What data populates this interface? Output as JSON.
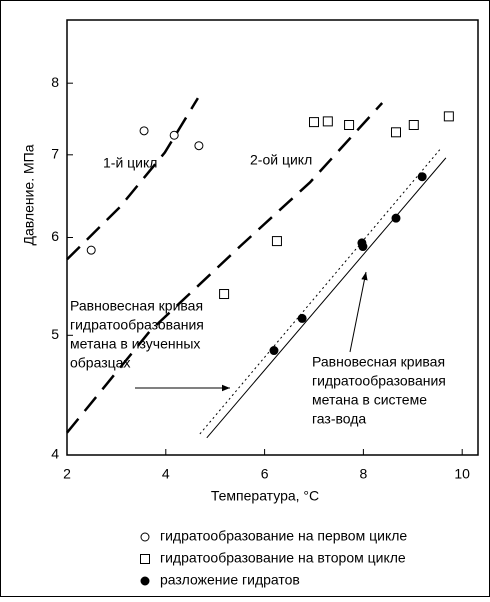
{
  "chart_data": {
    "type": "scatter",
    "xlabel": "Температура, °C",
    "ylabel": "Давление. МПа",
    "xlim": [
      2,
      10.32
    ],
    "xticks": [
      2,
      4,
      6,
      8,
      10
    ],
    "ylim": [
      4,
      9
    ],
    "yticks": [
      4,
      5,
      6,
      7,
      8
    ],
    "ylog": true,
    "series": [
      {
        "name": "гидратообразование на первом цикле",
        "marker": "open-circle",
        "color": "#000000",
        "x": [
          2.49,
          3.56,
          4.17,
          4.67
        ],
        "values": [
          5.86,
          7.32,
          7.26,
          7.12
        ]
      },
      {
        "name": "гидратообразование на втором цикле",
        "marker": "open-square",
        "color": "#000000",
        "x": [
          5.18,
          6.25,
          7.0,
          7.28,
          7.71,
          8.66,
          9.02,
          9.73
        ],
        "values": [
          5.4,
          5.96,
          7.44,
          7.45,
          7.4,
          7.3,
          7.4,
          7.52
        ]
      },
      {
        "name": "разложение гидратов",
        "marker": "filled-circle",
        "color": "#000000",
        "x": [
          6.19,
          6.76,
          7.97,
          7.99,
          8.66,
          9.19
        ],
        "values": [
          4.86,
          5.16,
          5.94,
          5.9,
          6.22,
          6.72
        ]
      },
      {
        "line": "long-dash",
        "color": "#000000",
        "x": [
          2,
          3.07,
          3.98,
          4.65
        ],
        "values": [
          5.76,
          6.35,
          7.03,
          7.78
        ]
      },
      {
        "line": "long-dash",
        "color": "#000000",
        "x": [
          2,
          3.68,
          5.5,
          6.92,
          8.38
        ],
        "values": [
          4.17,
          5.04,
          5.9,
          6.65,
          7.71
        ]
      },
      {
        "line": "solid",
        "color": "#000000",
        "x": [
          4.83,
          9.67
        ],
        "values": [
          4.13,
          6.96
        ]
      },
      {
        "line": "dotted",
        "color": "#000000",
        "x": [
          4.69,
          9.55
        ],
        "values": [
          4.16,
          7.07
        ]
      }
    ],
    "annotations": [
      {
        "lines": [
          "1-й цикл"
        ]
      },
      {
        "lines": [
          "2-ой цикл"
        ]
      },
      {
        "lines": [
          "Равновесная кривая",
          "гидратообразования",
          "метана в изученных",
          "образцах"
        ]
      },
      {
        "lines": [
          "Равновесная кривая",
          "гидратообразования",
          "метана в системе",
          "газ-вода"
        ]
      }
    ]
  }
}
